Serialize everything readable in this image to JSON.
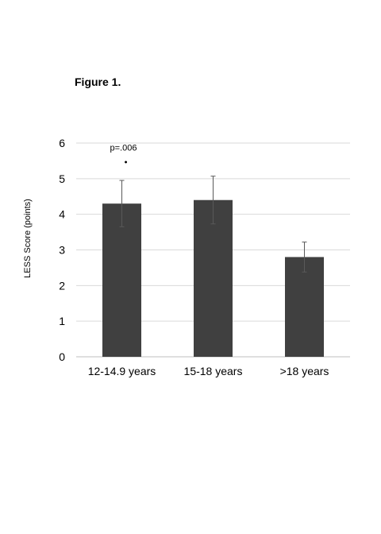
{
  "figure_label": "Figure 1.",
  "chart_data": {
    "type": "bar",
    "title": "",
    "xlabel": "",
    "ylabel": "LESS Score (points)",
    "categories": [
      "12-14.9 years",
      "15-18 years",
      ">18 years"
    ],
    "values": [
      4.3,
      4.4,
      2.8
    ],
    "error": [
      0.65,
      0.67,
      0.42
    ],
    "ylim": [
      0,
      6
    ],
    "yticks": [
      "0",
      "1",
      "2",
      "3",
      "4",
      "5",
      "6"
    ],
    "grid": true,
    "bar_color": "#404040",
    "annotations": [
      {
        "category_index": 0,
        "text": "p=.006",
        "marker": "•",
        "marker_y": 5.5
      }
    ]
  }
}
